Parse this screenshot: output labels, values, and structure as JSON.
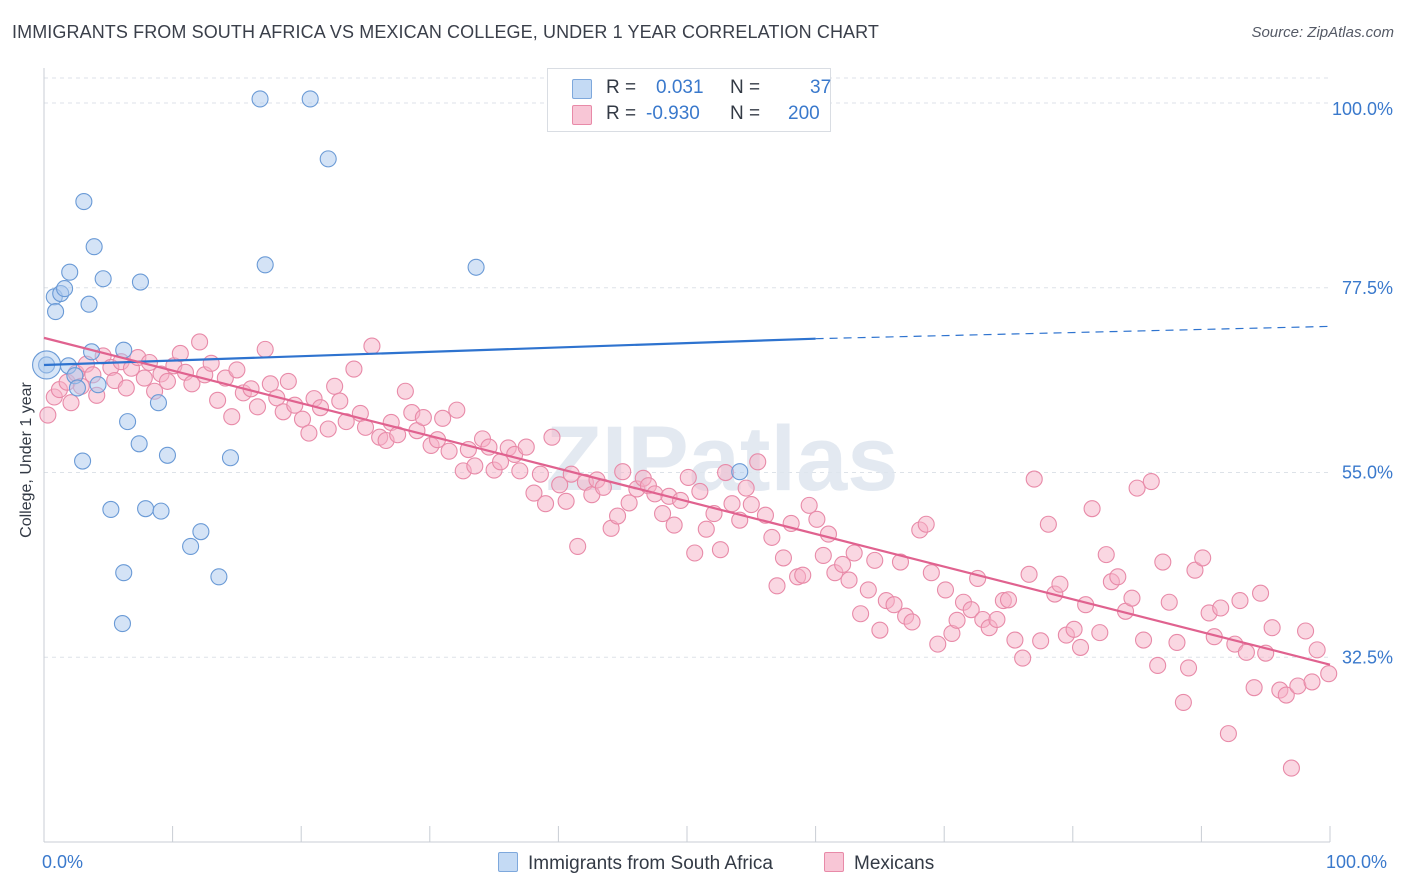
{
  "title": "IMMIGRANTS FROM SOUTH AFRICA VS MEXICAN COLLEGE, UNDER 1 YEAR CORRELATION CHART",
  "source": "Source: ZipAtlas.com",
  "watermark": "ZIPatlas",
  "legend": {
    "r_label": "R =",
    "n_label": "N =",
    "rows": [
      {
        "name": "Immigrants from South Africa",
        "r": "0.031",
        "n": "37",
        "color": "#a9c8ee"
      },
      {
        "name": "Mexicans",
        "r": "-0.930",
        "n": "200",
        "color": "#f5afc6"
      }
    ]
  },
  "chart_data": {
    "type": "scatter",
    "title": "IMMIGRANTS FROM SOUTH AFRICA VS MEXICAN COLLEGE, UNDER 1 YEAR CORRELATION CHART",
    "xlabel": "",
    "ylabel": "College, Under 1 year",
    "xlim": [
      0,
      100
    ],
    "ylim": [
      10,
      105
    ],
    "x_tick_labels": [
      "0.0%",
      "100.0%"
    ],
    "y_ticks": [
      32.5,
      55.0,
      77.5,
      100.0
    ],
    "y_tick_labels": [
      "32.5%",
      "55.0%",
      "77.5%",
      "100.0%"
    ],
    "grid": true,
    "legend_position": "top-center",
    "series": [
      {
        "name": "Immigrants from South Africa",
        "color": "#a9c8ee",
        "stroke": "#6a9ad6",
        "trend_color": "#2e73cf",
        "trend": {
          "x0": 0,
          "y0": 68.1,
          "x1": 60,
          "y1": 71.3,
          "dash_to_x": 100,
          "dash_to_y": 72.8
        },
        "points": [
          [
            0.2,
            68.1
          ],
          [
            0.8,
            76.4
          ],
          [
            0.9,
            74.6
          ],
          [
            1.3,
            76.8
          ],
          [
            1.6,
            77.4
          ],
          [
            2.0,
            79.4
          ],
          [
            1.9,
            68.0
          ],
          [
            2.4,
            66.8
          ],
          [
            2.6,
            65.3
          ],
          [
            3.1,
            88.0
          ],
          [
            3.5,
            75.5
          ],
          [
            3.9,
            82.5
          ],
          [
            3.7,
            69.7
          ],
          [
            4.2,
            65.7
          ],
          [
            4.6,
            78.6
          ],
          [
            3.0,
            56.4
          ],
          [
            5.2,
            50.5
          ],
          [
            6.2,
            69.9
          ],
          [
            7.5,
            78.2
          ],
          [
            6.5,
            61.2
          ],
          [
            7.4,
            58.5
          ],
          [
            7.9,
            50.6
          ],
          [
            8.9,
            63.5
          ],
          [
            9.1,
            50.3
          ],
          [
            9.6,
            57.1
          ],
          [
            11.4,
            46.0
          ],
          [
            12.2,
            47.8
          ],
          [
            14.5,
            56.8
          ],
          [
            13.6,
            42.3
          ],
          [
            6.2,
            42.8
          ],
          [
            6.1,
            36.6
          ],
          [
            16.8,
            100.5
          ],
          [
            20.7,
            100.5
          ],
          [
            22.1,
            93.2
          ],
          [
            17.2,
            80.3
          ],
          [
            33.6,
            80.0
          ],
          [
            54.1,
            55.1
          ]
        ]
      },
      {
        "name": "Mexicans",
        "color": "#f5afc6",
        "stroke": "#e88aa8",
        "trend_color": "#e0628f",
        "trend": {
          "x0": 0,
          "y0": 71.4,
          "x1": 100,
          "y1": 31.6
        },
        "points": [
          [
            0.3,
            62.0
          ],
          [
            0.8,
            64.2
          ],
          [
            1.2,
            65.1
          ],
          [
            1.8,
            66.0
          ],
          [
            2.1,
            63.5
          ],
          [
            2.5,
            67.1
          ],
          [
            2.9,
            65.5
          ],
          [
            3.3,
            68.2
          ],
          [
            3.8,
            66.9
          ],
          [
            4.1,
            64.4
          ],
          [
            4.6,
            69.2
          ],
          [
            5.2,
            67.8
          ],
          [
            5.5,
            66.2
          ],
          [
            6.0,
            68.5
          ],
          [
            6.4,
            65.3
          ],
          [
            6.8,
            67.7
          ],
          [
            7.3,
            69.0
          ],
          [
            7.8,
            66.5
          ],
          [
            8.2,
            68.4
          ],
          [
            8.6,
            64.9
          ],
          [
            9.1,
            67.0
          ],
          [
            9.6,
            66.1
          ],
          [
            10.1,
            68.0
          ],
          [
            10.6,
            69.5
          ],
          [
            11.0,
            67.2
          ],
          [
            11.5,
            65.8
          ],
          [
            12.1,
            70.9
          ],
          [
            12.5,
            66.9
          ],
          [
            13.0,
            68.3
          ],
          [
            13.5,
            63.8
          ],
          [
            14.1,
            66.5
          ],
          [
            14.6,
            61.8
          ],
          [
            15.0,
            67.5
          ],
          [
            15.5,
            64.7
          ],
          [
            16.1,
            65.2
          ],
          [
            16.6,
            63.0
          ],
          [
            17.2,
            70.0
          ],
          [
            17.6,
            65.8
          ],
          [
            18.1,
            64.1
          ],
          [
            18.6,
            62.4
          ],
          [
            19.0,
            66.1
          ],
          [
            19.5,
            63.2
          ],
          [
            20.1,
            61.5
          ],
          [
            20.6,
            59.8
          ],
          [
            21.0,
            64.0
          ],
          [
            21.5,
            62.9
          ],
          [
            22.1,
            60.3
          ],
          [
            22.6,
            65.5
          ],
          [
            23.0,
            63.7
          ],
          [
            23.5,
            61.2
          ],
          [
            24.1,
            67.6
          ],
          [
            24.6,
            62.2
          ],
          [
            25.0,
            60.5
          ],
          [
            25.5,
            70.4
          ],
          [
            26.1,
            59.3
          ],
          [
            26.6,
            58.9
          ],
          [
            27.0,
            61.1
          ],
          [
            27.5,
            59.6
          ],
          [
            28.1,
            64.9
          ],
          [
            28.6,
            62.3
          ],
          [
            29.0,
            60.1
          ],
          [
            29.5,
            61.7
          ],
          [
            30.1,
            58.3
          ],
          [
            30.6,
            59.0
          ],
          [
            31.0,
            61.6
          ],
          [
            31.5,
            57.6
          ],
          [
            32.1,
            62.6
          ],
          [
            32.6,
            55.2
          ],
          [
            33.0,
            57.8
          ],
          [
            33.5,
            55.8
          ],
          [
            34.1,
            59.1
          ],
          [
            34.6,
            58.1
          ],
          [
            35.0,
            55.3
          ],
          [
            35.5,
            56.3
          ],
          [
            36.1,
            58.0
          ],
          [
            36.6,
            57.2
          ],
          [
            37.0,
            55.2
          ],
          [
            37.5,
            58.1
          ],
          [
            38.1,
            52.5
          ],
          [
            38.6,
            54.8
          ],
          [
            39.0,
            51.2
          ],
          [
            39.5,
            59.3
          ],
          [
            40.1,
            53.5
          ],
          [
            40.6,
            51.5
          ],
          [
            41.0,
            54.8
          ],
          [
            41.5,
            46.0
          ],
          [
            42.1,
            53.8
          ],
          [
            42.6,
            52.3
          ],
          [
            43.0,
            54.1
          ],
          [
            43.5,
            53.2
          ],
          [
            44.1,
            48.2
          ],
          [
            44.6,
            49.7
          ],
          [
            45.0,
            55.1
          ],
          [
            45.5,
            51.3
          ],
          [
            46.1,
            53.0
          ],
          [
            46.6,
            54.3
          ],
          [
            47.0,
            53.4
          ],
          [
            47.5,
            52.4
          ],
          [
            48.1,
            50.0
          ],
          [
            48.6,
            52.1
          ],
          [
            49.0,
            48.6
          ],
          [
            49.5,
            51.6
          ],
          [
            50.1,
            54.4
          ],
          [
            50.6,
            45.2
          ],
          [
            51.0,
            52.7
          ],
          [
            51.5,
            48.1
          ],
          [
            52.1,
            50.0
          ],
          [
            52.6,
            45.6
          ],
          [
            53.0,
            55.0
          ],
          [
            53.5,
            51.2
          ],
          [
            54.1,
            49.2
          ],
          [
            54.6,
            53.1
          ],
          [
            55.0,
            51.1
          ],
          [
            55.5,
            56.3
          ],
          [
            56.1,
            49.8
          ],
          [
            56.6,
            47.1
          ],
          [
            57.0,
            41.2
          ],
          [
            57.5,
            44.6
          ],
          [
            58.1,
            48.8
          ],
          [
            58.6,
            42.3
          ],
          [
            59.0,
            42.5
          ],
          [
            59.5,
            51.0
          ],
          [
            60.1,
            49.3
          ],
          [
            60.6,
            44.9
          ],
          [
            61.0,
            47.5
          ],
          [
            61.5,
            42.8
          ],
          [
            62.1,
            43.8
          ],
          [
            62.6,
            41.9
          ],
          [
            63.0,
            45.2
          ],
          [
            63.5,
            37.8
          ],
          [
            64.1,
            40.7
          ],
          [
            64.6,
            44.3
          ],
          [
            65.0,
            35.8
          ],
          [
            65.5,
            39.4
          ],
          [
            66.1,
            38.9
          ],
          [
            66.6,
            44.1
          ],
          [
            67.0,
            37.5
          ],
          [
            67.5,
            36.8
          ],
          [
            68.1,
            48.0
          ],
          [
            68.6,
            48.7
          ],
          [
            69.0,
            42.8
          ],
          [
            69.5,
            34.1
          ],
          [
            70.1,
            40.7
          ],
          [
            70.6,
            35.4
          ],
          [
            71.0,
            37.0
          ],
          [
            71.5,
            39.2
          ],
          [
            72.1,
            38.3
          ],
          [
            72.6,
            42.1
          ],
          [
            73.0,
            37.1
          ],
          [
            73.5,
            36.1
          ],
          [
            74.1,
            37.1
          ],
          [
            74.6,
            39.4
          ],
          [
            75.0,
            39.5
          ],
          [
            75.5,
            34.6
          ],
          [
            76.1,
            32.4
          ],
          [
            76.6,
            42.6
          ],
          [
            77.0,
            54.2
          ],
          [
            77.5,
            34.5
          ],
          [
            78.1,
            48.7
          ],
          [
            78.6,
            40.2
          ],
          [
            79.0,
            41.4
          ],
          [
            79.5,
            35.2
          ],
          [
            80.1,
            35.9
          ],
          [
            80.6,
            33.7
          ],
          [
            81.0,
            38.9
          ],
          [
            81.5,
            50.6
          ],
          [
            82.1,
            35.5
          ],
          [
            82.6,
            45.0
          ],
          [
            83.0,
            41.7
          ],
          [
            83.5,
            42.3
          ],
          [
            84.1,
            38.1
          ],
          [
            84.6,
            39.7
          ],
          [
            85.0,
            53.1
          ],
          [
            85.5,
            34.6
          ],
          [
            86.1,
            53.9
          ],
          [
            86.6,
            31.5
          ],
          [
            87.0,
            44.1
          ],
          [
            87.5,
            39.2
          ],
          [
            88.1,
            34.3
          ],
          [
            88.6,
            27.0
          ],
          [
            89.0,
            31.2
          ],
          [
            89.5,
            43.1
          ],
          [
            90.1,
            44.6
          ],
          [
            90.6,
            37.9
          ],
          [
            91.0,
            35.0
          ],
          [
            91.5,
            38.5
          ],
          [
            92.1,
            23.2
          ],
          [
            92.6,
            34.1
          ],
          [
            93.0,
            39.4
          ],
          [
            93.5,
            33.1
          ],
          [
            94.1,
            28.8
          ],
          [
            94.6,
            40.3
          ],
          [
            95.0,
            33.0
          ],
          [
            95.5,
            36.1
          ],
          [
            96.1,
            28.5
          ],
          [
            96.6,
            27.9
          ],
          [
            97.0,
            19.0
          ],
          [
            97.5,
            29.0
          ],
          [
            98.1,
            35.7
          ],
          [
            98.6,
            29.5
          ],
          [
            99.0,
            33.4
          ],
          [
            99.9,
            30.5
          ]
        ]
      }
    ]
  }
}
